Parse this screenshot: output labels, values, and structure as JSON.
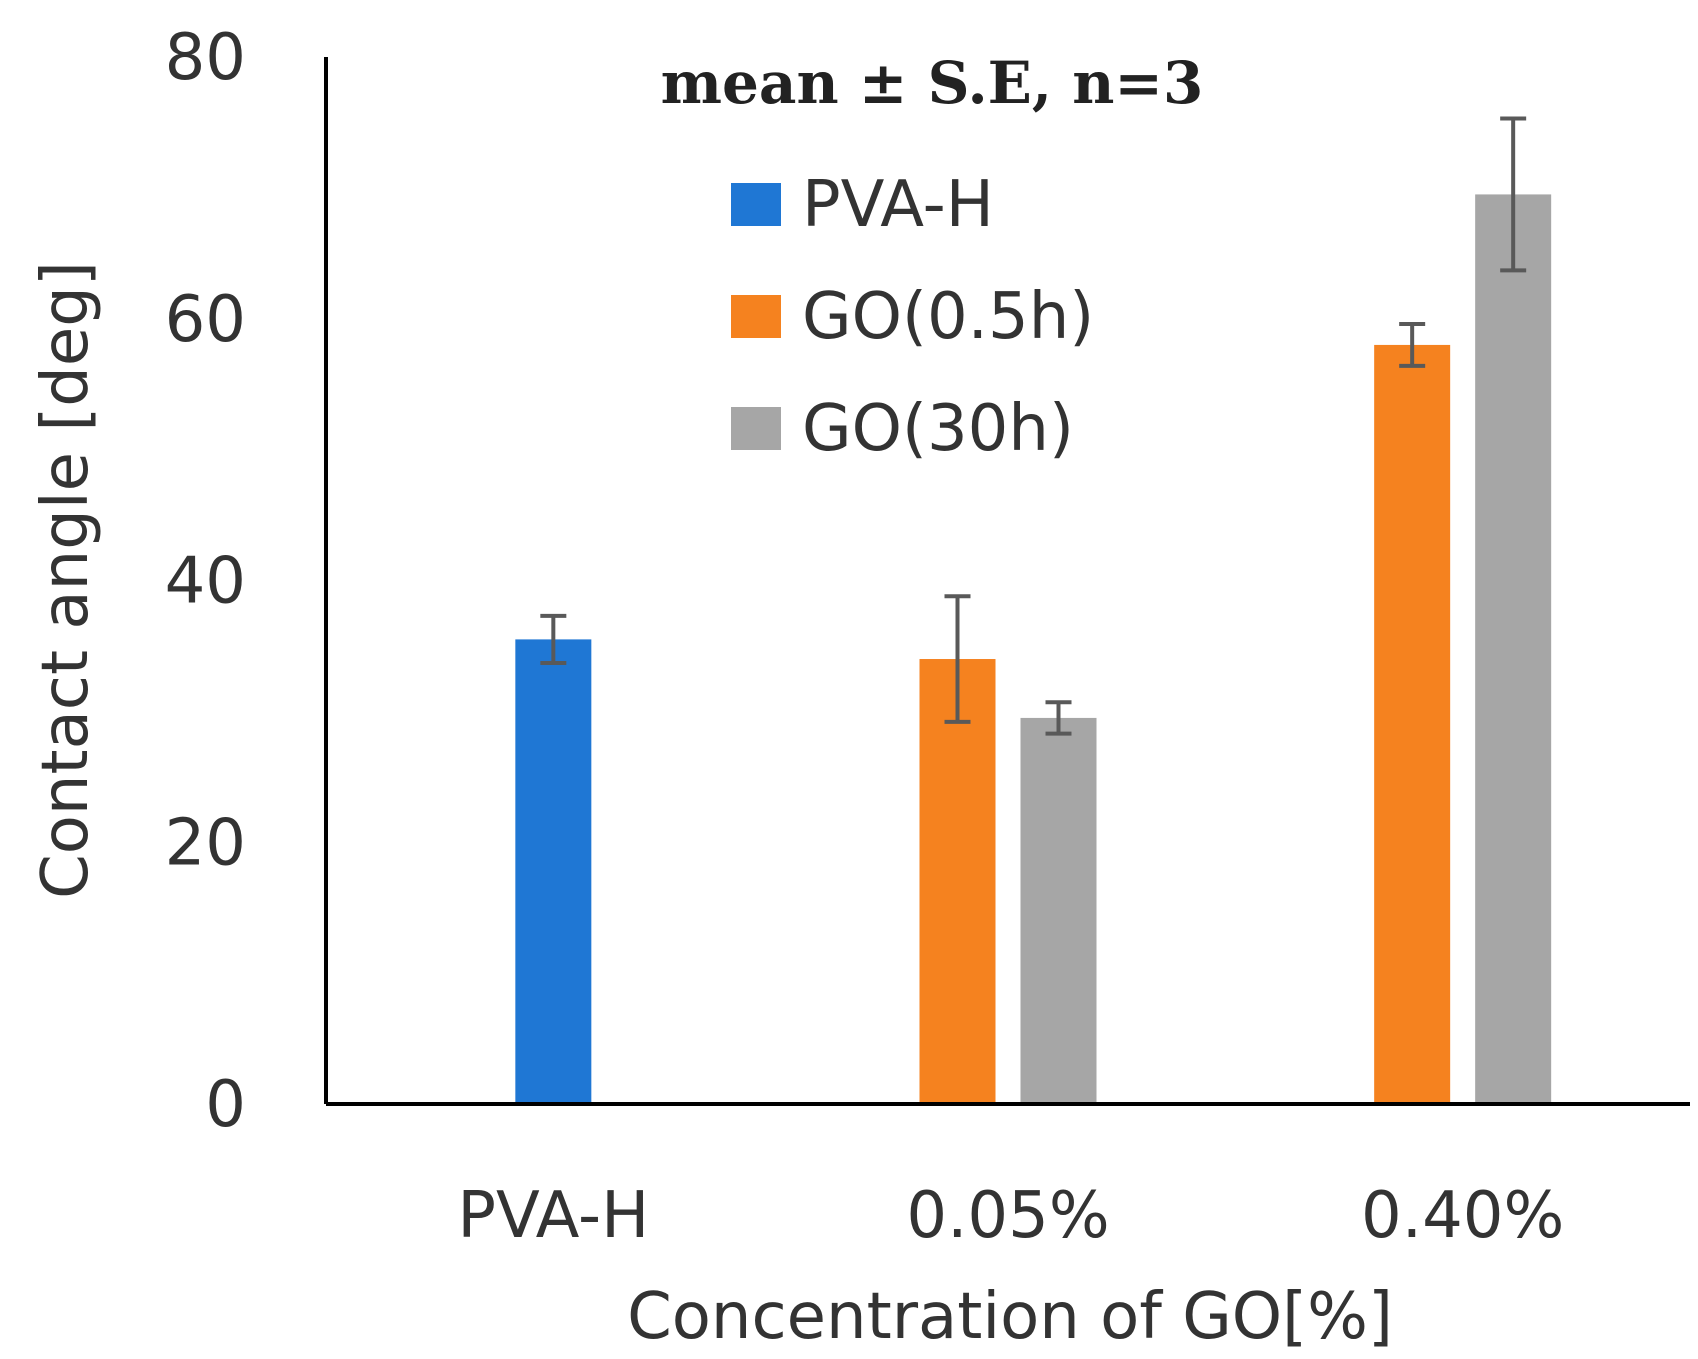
{
  "chart_data": {
    "type": "bar",
    "title": "",
    "annotation": "mean ± S.E, n=3",
    "xlabel": "Concentration of GO[%]",
    "ylabel": "Contact angle [deg]",
    "ylim": [
      0,
      80
    ],
    "yticks": [
      "0",
      "20",
      "40",
      "60",
      "80"
    ],
    "grid": false,
    "legend_position": "top-center",
    "categories": [
      "PVA-H",
      "0.05%",
      "0.40%"
    ],
    "series": [
      {
        "name": "PVA-H",
        "color": "#1f77d4",
        "values": [
          35.5,
          null,
          null
        ],
        "errors": [
          1.8,
          null,
          null
        ]
      },
      {
        "name": "GO(0.5h)",
        "color": "#f5821f",
        "values": [
          null,
          34,
          58
        ],
        "errors": [
          null,
          4.8,
          1.6
        ]
      },
      {
        "name": "GO(30h)",
        "color": "#a6a6a6",
        "values": [
          null,
          29.5,
          69.5
        ],
        "errors": [
          null,
          1.2,
          5.8
        ]
      }
    ],
    "error_bar_color": "#595959"
  }
}
